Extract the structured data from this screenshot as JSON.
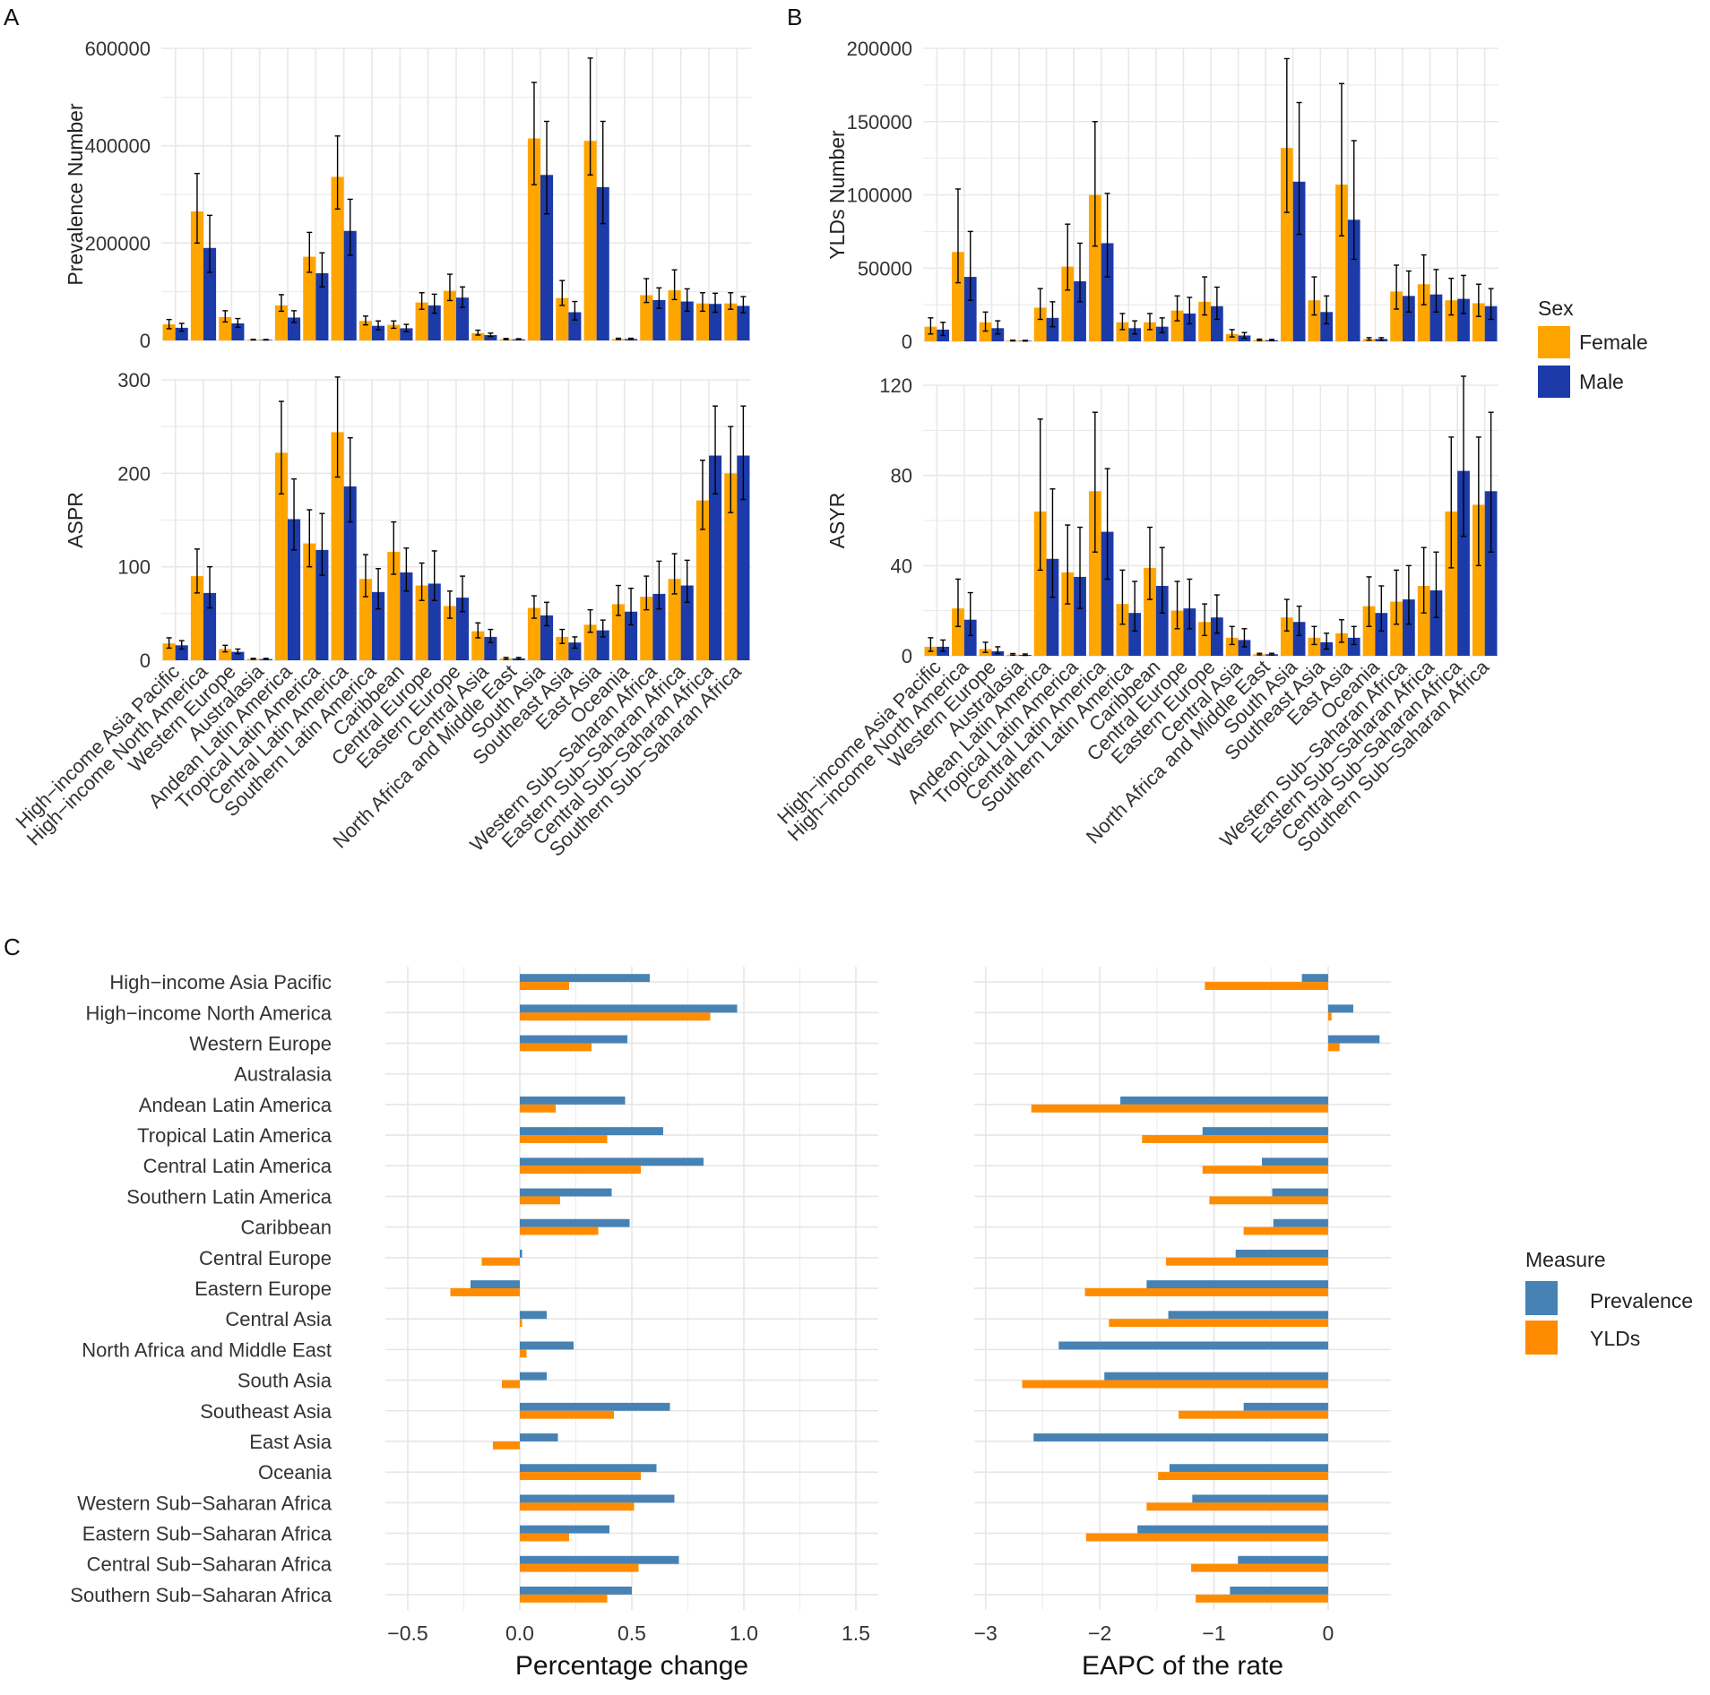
{
  "figure": {
    "panel_labels": [
      "A",
      "B",
      "C"
    ],
    "sex_legend": {
      "title": "Sex",
      "items": [
        {
          "label": "Female",
          "color": "#FFA500"
        },
        {
          "label": "Male",
          "color": "#1C3AA8"
        }
      ]
    },
    "measure_legend": {
      "title": "Measure",
      "items": [
        {
          "label": "Prevalence",
          "color": "#4682B4"
        },
        {
          "label": "YLDs",
          "color": "#FF8C00"
        }
      ]
    }
  },
  "chart_data": [
    {
      "id": "prevalence_number",
      "panel": "A",
      "type": "bar",
      "ylabel": "Prevalence Number",
      "ylim": [
        0,
        600000
      ],
      "yticks": [
        0,
        200000,
        400000,
        600000
      ],
      "ytick_labels": [
        "0",
        "200000",
        "400000",
        "600000"
      ],
      "categories": [
        "High−income Asia Pacific",
        "High−income North America",
        "Western Europe",
        "Australasia",
        "Andean Latin America",
        "Tropical Latin America",
        "Central Latin America",
        "Southern Latin America",
        "Caribbean",
        "Central Europe",
        "Eastern Europe",
        "Central Asia",
        "North Africa and Middle East",
        "South Asia",
        "Southeast Asia",
        "East Asia",
        "Oceania",
        "Western Sub−Saharan Africa",
        "Eastern Sub−Saharan Africa",
        "Central Sub−Saharan Africa",
        "Southern Sub−Saharan Africa"
      ],
      "series": [
        {
          "name": "Female",
          "values": [
            33000,
            265000,
            48000,
            1500,
            72000,
            172000,
            336000,
            40000,
            32000,
            78000,
            102000,
            15000,
            2500,
            415000,
            87000,
            410000,
            3000,
            93000,
            103000,
            76000,
            76000
          ],
          "lower": [
            24000,
            200000,
            38000,
            1000,
            60000,
            140000,
            270000,
            32000,
            25000,
            64000,
            82000,
            11000,
            1500,
            320000,
            72000,
            340000,
            2000,
            78000,
            84000,
            60000,
            64000
          ],
          "upper": [
            43000,
            343000,
            61000,
            2200,
            94000,
            222000,
            420000,
            50000,
            40000,
            98000,
            136000,
            21000,
            4000,
            530000,
            123000,
            580000,
            4500,
            127000,
            145000,
            98000,
            98000
          ]
        },
        {
          "name": "Male",
          "values": [
            26000,
            190000,
            35000,
            1300,
            47000,
            138000,
            225000,
            30000,
            25000,
            72000,
            88000,
            11000,
            2300,
            340000,
            58000,
            315000,
            3000,
            83000,
            80000,
            75000,
            71000
          ],
          "lower": [
            19000,
            140000,
            27000,
            900,
            37000,
            110000,
            175000,
            22000,
            18000,
            56000,
            68000,
            8000,
            1500,
            260000,
            42000,
            240000,
            2000,
            66000,
            60000,
            58000,
            57000
          ],
          "upper": [
            35000,
            257000,
            45000,
            2000,
            61000,
            180000,
            290000,
            40000,
            33000,
            95000,
            110000,
            15000,
            3500,
            450000,
            80000,
            450000,
            4500,
            108000,
            106000,
            97000,
            90000
          ]
        }
      ]
    },
    {
      "id": "yld_number",
      "panel": "B",
      "type": "bar",
      "ylabel": "YLDs Number",
      "ylim": [
        0,
        200000
      ],
      "yticks": [
        0,
        50000,
        100000,
        150000,
        200000
      ],
      "ytick_labels": [
        "0",
        "50000",
        "100000",
        "150000",
        "200000"
      ],
      "categories": [
        "High−income Asia Pacific",
        "High−income North America",
        "Western Europe",
        "Australasia",
        "Andean Latin America",
        "Tropical Latin America",
        "Central Latin America",
        "Southern Latin America",
        "Caribbean",
        "Central Europe",
        "Eastern Europe",
        "Central Asia",
        "North Africa and Middle East",
        "South Asia",
        "Southeast Asia",
        "East Asia",
        "Oceania",
        "Western Sub−Saharan Africa",
        "Eastern Sub−Saharan Africa",
        "Central Sub−Saharan Africa",
        "Southern Sub−Saharan Africa"
      ],
      "series": [
        {
          "name": "Female",
          "values": [
            10000,
            61000,
            13000,
            500,
            23000,
            51000,
            100000,
            13000,
            13000,
            21000,
            27000,
            5000,
            900,
            132000,
            28000,
            107000,
            1500,
            34000,
            39000,
            28000,
            26000
          ],
          "lower": [
            5000,
            40000,
            7000,
            300,
            15000,
            35000,
            65000,
            8000,
            8000,
            14000,
            18000,
            3000,
            500,
            88000,
            18000,
            72000,
            800,
            22000,
            25000,
            18000,
            17000
          ],
          "upper": [
            16000,
            104000,
            20000,
            800,
            36000,
            80000,
            150000,
            19000,
            19000,
            31000,
            44000,
            8000,
            1500,
            193000,
            44000,
            176000,
            2500,
            52000,
            59000,
            43000,
            39000
          ]
        },
        {
          "name": "Male",
          "values": [
            8000,
            44000,
            9000,
            400,
            16000,
            41000,
            67000,
            9000,
            10000,
            19000,
            24000,
            4000,
            800,
            109000,
            20000,
            83000,
            1600,
            31000,
            32000,
            29000,
            24000
          ],
          "lower": [
            4000,
            28000,
            5000,
            200,
            10000,
            27000,
            44000,
            5000,
            6000,
            12000,
            15000,
            2000,
            400,
            73000,
            12000,
            56000,
            900,
            20000,
            20000,
            19000,
            15000
          ],
          "upper": [
            13000,
            75000,
            14000,
            700,
            27000,
            67000,
            101000,
            14000,
            16000,
            30000,
            37000,
            6000,
            1300,
            163000,
            31000,
            137000,
            2500,
            48000,
            49000,
            45000,
            36000
          ]
        }
      ]
    },
    {
      "id": "aspr",
      "panel": "A",
      "type": "bar",
      "ylabel": "ASPR",
      "ylim": [
        0,
        300
      ],
      "yticks": [
        0,
        100,
        200,
        300
      ],
      "ytick_labels": [
        "0",
        "100",
        "200",
        "300"
      ],
      "categories": [
        "High−income Asia Pacific",
        "High−income North America",
        "Western Europe",
        "Australasia",
        "Andean Latin America",
        "Tropical Latin America",
        "Central Latin America",
        "Southern Latin America",
        "Caribbean",
        "Central Europe",
        "Eastern Europe",
        "Central Asia",
        "North Africa and Middle East",
        "South Asia",
        "Southeast Asia",
        "East Asia",
        "Oceania",
        "Western Sub−Saharan Africa",
        "Eastern Sub−Saharan Africa",
        "Central Sub−Saharan Africa",
        "Southern Sub−Saharan Africa"
      ],
      "series": [
        {
          "name": "Female",
          "values": [
            18,
            90,
            12,
            1.5,
            222,
            125,
            244,
            87,
            116,
            80,
            58,
            31,
            2,
            56,
            25,
            38,
            60,
            68,
            87,
            171,
            200
          ],
          "lower": [
            13,
            72,
            9,
            1,
            178,
            100,
            196,
            68,
            92,
            64,
            45,
            24,
            1,
            45,
            18,
            30,
            48,
            54,
            71,
            140,
            158
          ],
          "upper": [
            24,
            119,
            16,
            2,
            277,
            161,
            303,
            113,
            148,
            104,
            74,
            40,
            3,
            69,
            33,
            54,
            80,
            90,
            114,
            214,
            250
          ]
        },
        {
          "name": "Male",
          "values": [
            16,
            72,
            9,
            1.3,
            151,
            118,
            186,
            73,
            94,
            82,
            67,
            25,
            2,
            48,
            19,
            32,
            52,
            71,
            80,
            219,
            219
          ],
          "lower": [
            12,
            56,
            7,
            1,
            118,
            91,
            148,
            55,
            74,
            64,
            52,
            19,
            1,
            37,
            13,
            25,
            38,
            55,
            62,
            178,
            172
          ],
          "upper": [
            21,
            100,
            12,
            2,
            194,
            157,
            238,
            98,
            120,
            117,
            90,
            33,
            3,
            62,
            25,
            43,
            77,
            106,
            107,
            272,
            272
          ]
        }
      ]
    },
    {
      "id": "asyr",
      "panel": "B",
      "type": "bar",
      "ylabel": "ASYR",
      "ylim": [
        0,
        120
      ],
      "yticks": [
        0,
        40,
        80,
        120
      ],
      "ytick_labels": [
        "0",
        "40",
        "80",
        "120"
      ],
      "categories": [
        "High−income Asia Pacific",
        "High−income North America",
        "Western Europe",
        "Australasia",
        "Andean Latin America",
        "Tropical Latin America",
        "Central Latin America",
        "Southern Latin America",
        "Caribbean",
        "Central Europe",
        "Eastern Europe",
        "Central Asia",
        "North Africa and Middle East",
        "South Asia",
        "Southeast Asia",
        "East Asia",
        "Oceania",
        "Western Sub−Saharan Africa",
        "Eastern Sub−Saharan Africa",
        "Central Sub−Saharan Africa",
        "Southern Sub−Saharan Africa"
      ],
      "series": [
        {
          "name": "Female",
          "values": [
            4,
            21,
            3,
            0.5,
            64,
            37,
            73,
            23,
            39,
            20,
            15,
            8,
            0.7,
            17,
            8,
            10,
            22,
            24,
            31,
            64,
            67
          ],
          "lower": [
            2,
            13,
            1.5,
            0.3,
            38,
            23,
            46,
            14,
            25,
            12,
            9,
            5,
            0.4,
            11,
            5,
            6,
            13,
            14,
            19,
            39,
            40
          ],
          "upper": [
            8,
            34,
            6,
            1,
            105,
            58,
            108,
            38,
            57,
            33,
            23,
            13,
            1.1,
            25,
            13,
            16,
            35,
            38,
            48,
            97,
            97
          ]
        },
        {
          "name": "Male",
          "values": [
            4,
            16,
            2,
            0.4,
            43,
            35,
            55,
            19,
            31,
            21,
            17,
            7,
            0.7,
            15,
            6,
            8,
            19,
            25,
            29,
            82,
            73
          ],
          "lower": [
            2,
            9,
            1,
            0.2,
            26,
            21,
            34,
            11,
            19,
            12,
            10,
            4,
            0.4,
            9,
            3,
            5,
            11,
            14,
            17,
            53,
            46
          ],
          "upper": [
            7,
            28,
            4,
            0.8,
            74,
            57,
            83,
            33,
            48,
            34,
            27,
            12,
            1.1,
            22,
            10,
            13,
            31,
            40,
            46,
            124,
            108
          ]
        }
      ]
    },
    {
      "id": "percentage_change",
      "panel": "C",
      "type": "bar",
      "orientation": "horizontal",
      "xlabel": "Percentage change",
      "xlim": [
        -0.6,
        1.6
      ],
      "xticks": [
        -0.5,
        0,
        0.5,
        1,
        1.5
      ],
      "xtick_labels": [
        "−0.5",
        "0.0",
        "0.5",
        "1.0",
        "1.5"
      ],
      "categories": [
        "High−income Asia Pacific",
        "High−income North America",
        "Western Europe",
        "Australasia",
        "Andean Latin America",
        "Tropical Latin America",
        "Central Latin America",
        "Southern Latin America",
        "Caribbean",
        "Central Europe",
        "Eastern Europe",
        "Central Asia",
        "North Africa and Middle East",
        "South Asia",
        "Southeast Asia",
        "East Asia",
        "Oceania",
        "Western Sub−Saharan Africa",
        "Eastern Sub−Saharan Africa",
        "Central Sub−Saharan Africa",
        "Southern Sub−Saharan Africa"
      ],
      "series": [
        {
          "name": "Prevalence",
          "values": [
            0.58,
            0.97,
            0.48,
            0,
            0.47,
            0.64,
            0.82,
            0.41,
            0.49,
            0.01,
            -0.22,
            0.12,
            0.24,
            0.12,
            0.67,
            0.17,
            0.61,
            0.69,
            0.4,
            0.71,
            0.5
          ]
        },
        {
          "name": "YLDs",
          "values": [
            0.22,
            0.85,
            0.32,
            0,
            0.16,
            0.39,
            0.54,
            0.18,
            0.35,
            -0.17,
            -0.31,
            0.01,
            0.03,
            -0.08,
            0.42,
            -0.12,
            0.54,
            0.51,
            0.22,
            0.53,
            0.39
          ]
        }
      ]
    },
    {
      "id": "eapc",
      "panel": "C",
      "type": "bar",
      "orientation": "horizontal",
      "xlabel": "EAPC of the rate",
      "xlim": [
        -3.1,
        0.55
      ],
      "xticks": [
        -3,
        -2,
        -1,
        0
      ],
      "xtick_labels": [
        "−3",
        "−2",
        "−1",
        "0"
      ],
      "categories": [
        "High−income Asia Pacific",
        "High−income North America",
        "Western Europe",
        "Australasia",
        "Andean Latin America",
        "Tropical Latin America",
        "Central Latin America",
        "Southern Latin America",
        "Caribbean",
        "Central Europe",
        "Eastern Europe",
        "Central Asia",
        "North Africa and Middle East",
        "South Asia",
        "Southeast Asia",
        "East Asia",
        "Oceania",
        "Western Sub−Saharan Africa",
        "Eastern Sub−Saharan Africa",
        "Central Sub−Saharan Africa",
        "Southern Sub−Saharan Africa"
      ],
      "series": [
        {
          "name": "Prevalence",
          "values": [
            -0.23,
            0.22,
            0.45,
            0,
            -1.82,
            -1.1,
            -0.58,
            -0.49,
            -0.48,
            -0.81,
            -1.59,
            -1.4,
            -2.36,
            -1.96,
            -0.74,
            -2.58,
            -1.39,
            -1.19,
            -1.67,
            -0.79,
            -0.86
          ]
        },
        {
          "name": "YLDs",
          "values": [
            -1.08,
            0.03,
            0.1,
            0,
            -2.6,
            -1.63,
            -1.1,
            -1.04,
            -0.74,
            -1.42,
            -2.13,
            -1.92,
            0,
            -2.68,
            -1.31,
            0,
            -1.49,
            -1.59,
            -2.12,
            -1.2,
            -1.16
          ]
        }
      ]
    }
  ]
}
